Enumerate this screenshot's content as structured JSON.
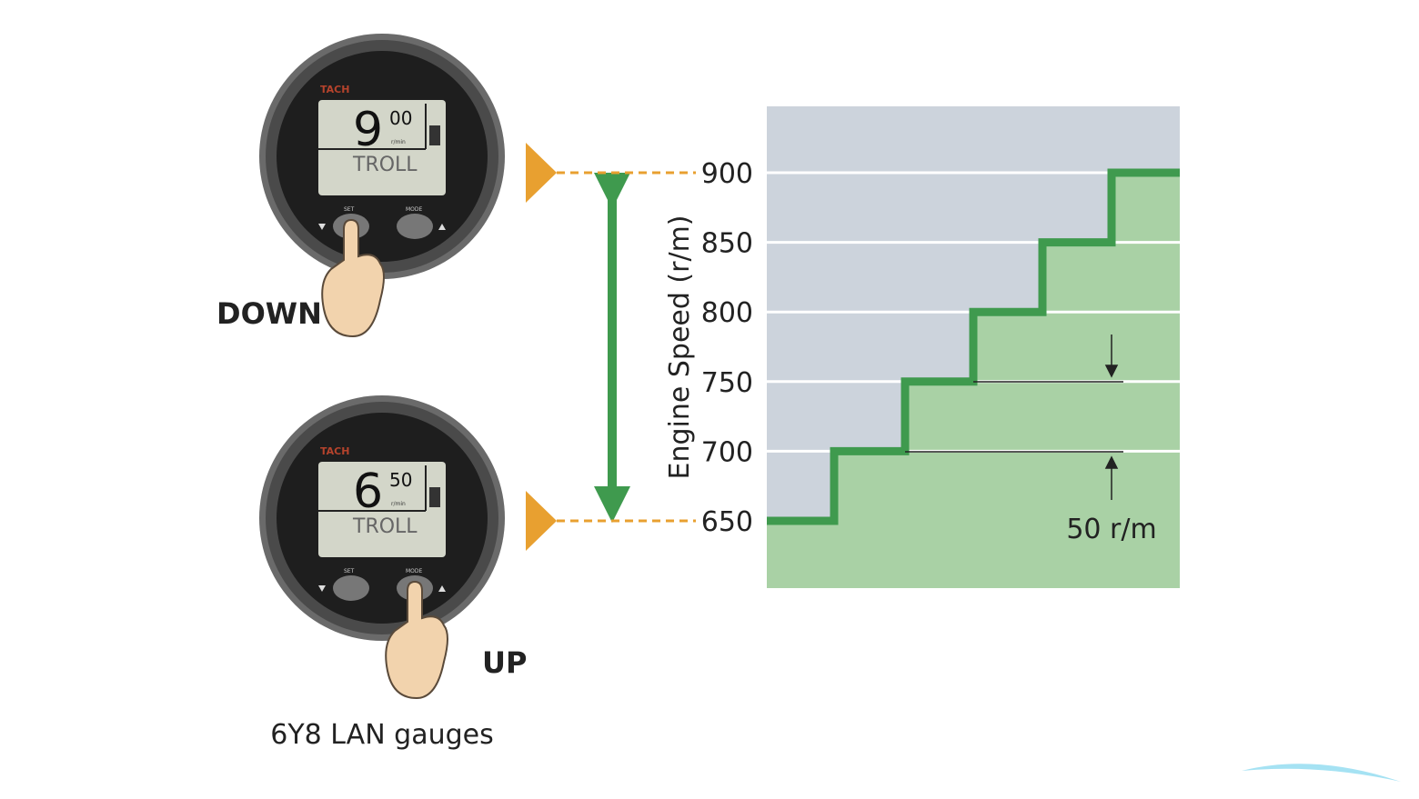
{
  "gauges": [
    {
      "brand": "TACH",
      "big_digit": "9",
      "small_digits": "00",
      "unit": "r/min",
      "mode": "TROLL",
      "button_left": "SET",
      "button_right": "MODE",
      "action": "DOWN",
      "pressed": "left"
    },
    {
      "brand": "TACH",
      "big_digit": "6",
      "small_digits": "50",
      "unit": "r/min",
      "mode": "TROLL",
      "button_left": "SET",
      "button_right": "MODE",
      "action": "UP",
      "pressed": "right"
    }
  ],
  "caption": "6Y8 LAN gauges",
  "colors": {
    "green": "#3f9a4e",
    "green_fill": "#a9d1a5",
    "grey_bg": "#ccd3dc",
    "orange": "#e8a030",
    "gauge_bezel": "#555555",
    "lcd": "#d3d6c9"
  },
  "chart_data": {
    "type": "line",
    "step": true,
    "ylabel": "Engine Speed (r/m)",
    "yticks": [
      650,
      700,
      750,
      800,
      850,
      900
    ],
    "ylim": [
      650,
      900
    ],
    "grid": true,
    "steps": [
      650,
      700,
      750,
      800,
      850,
      900
    ],
    "annotation": "50 r/m"
  },
  "watermark": "logo"
}
